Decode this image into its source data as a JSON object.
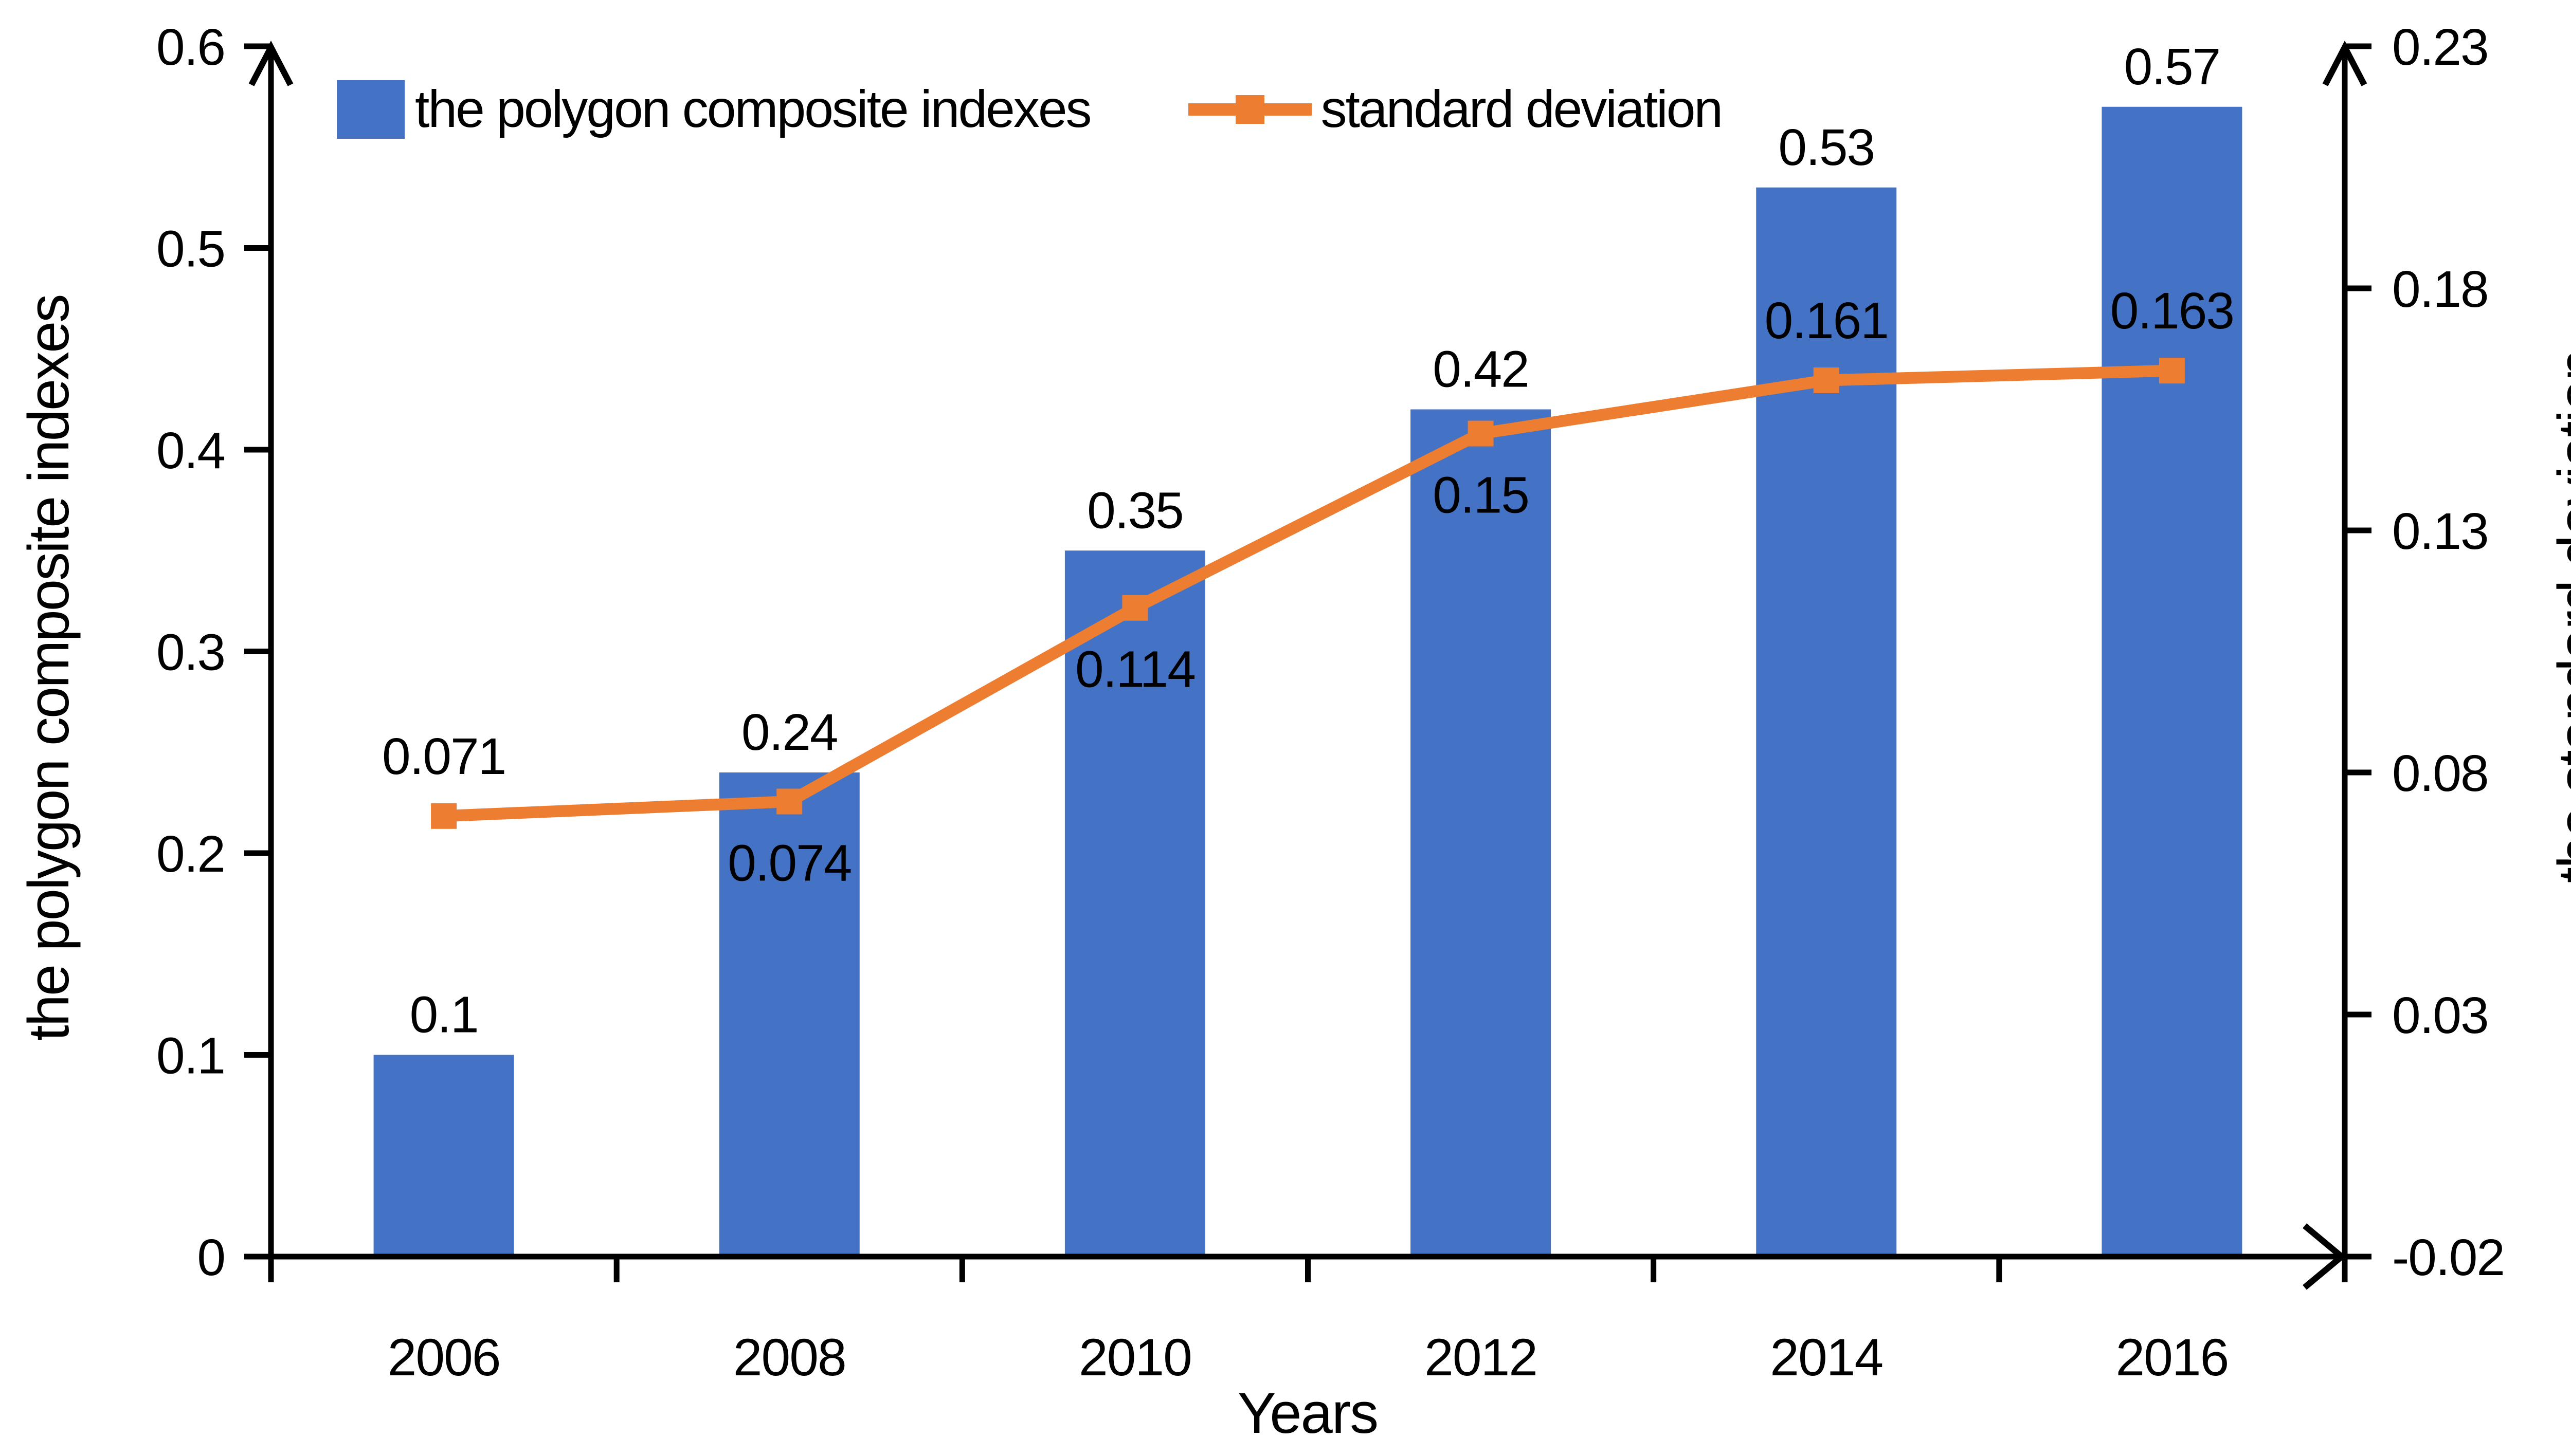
{
  "chart_data": {
    "type": "bar",
    "combo": "bar+line dual axis",
    "categories": [
      "2006",
      "2008",
      "2010",
      "2012",
      "2014",
      "2016"
    ],
    "series": [
      {
        "name": "the polygon composite indexes",
        "type": "bar",
        "axis": "left",
        "color": "#4472C4",
        "values": [
          0.1,
          0.24,
          0.35,
          0.42,
          0.53,
          0.57
        ],
        "data_labels": [
          "0.1",
          "0.24",
          "0.35",
          "0.42",
          "0.53",
          "0.57"
        ]
      },
      {
        "name": "standard deviation",
        "type": "line",
        "axis": "right",
        "color": "#ED7D31",
        "marker": "square",
        "values": [
          0.071,
          0.074,
          0.114,
          0.15,
          0.161,
          0.163
        ],
        "data_labels": [
          "0.071",
          "0.074",
          "0.114",
          "0.15",
          "0.161",
          "0.163"
        ],
        "data_label_side": [
          "above",
          "below",
          "below",
          "below",
          "above",
          "above"
        ]
      }
    ],
    "x_axis": {
      "title": "Years"
    },
    "left_axis": {
      "title": "the polygon composite indexes",
      "min": 0,
      "max": 0.6,
      "tick_values": [
        0,
        0.1,
        0.2,
        0.3,
        0.4,
        0.5,
        0.6
      ],
      "tick_labels": [
        "0",
        "0.1",
        "0.2",
        "0.3",
        "0.4",
        "0.5",
        "0.6"
      ]
    },
    "right_axis": {
      "title": "the standard deviation",
      "min": -0.02,
      "max": 0.23,
      "tick_values": [
        -0.02,
        0.03,
        0.08,
        0.13,
        0.18,
        0.23
      ],
      "tick_labels": [
        "-0.02",
        "0.03",
        "0.08",
        "0.13",
        "0.18",
        "0.23"
      ]
    },
    "legend_position": "top",
    "grid": false,
    "colors": {
      "bar": "#4472C4",
      "line": "#ED7D31",
      "axis": "#000000",
      "background": "#FFFFFF"
    }
  }
}
